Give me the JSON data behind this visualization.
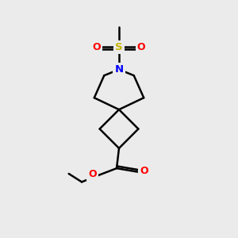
{
  "bg_color": "#EBEBEB",
  "bond_color": "#000000",
  "N_color": "#0000FF",
  "S_color": "#C8B400",
  "O_color": "#FF0000",
  "line_width": 1.8,
  "fig_size": [
    3.0,
    3.0
  ],
  "dpi": 100,
  "xlim": [
    0,
    10
  ],
  "ylim": [
    0,
    10
  ]
}
